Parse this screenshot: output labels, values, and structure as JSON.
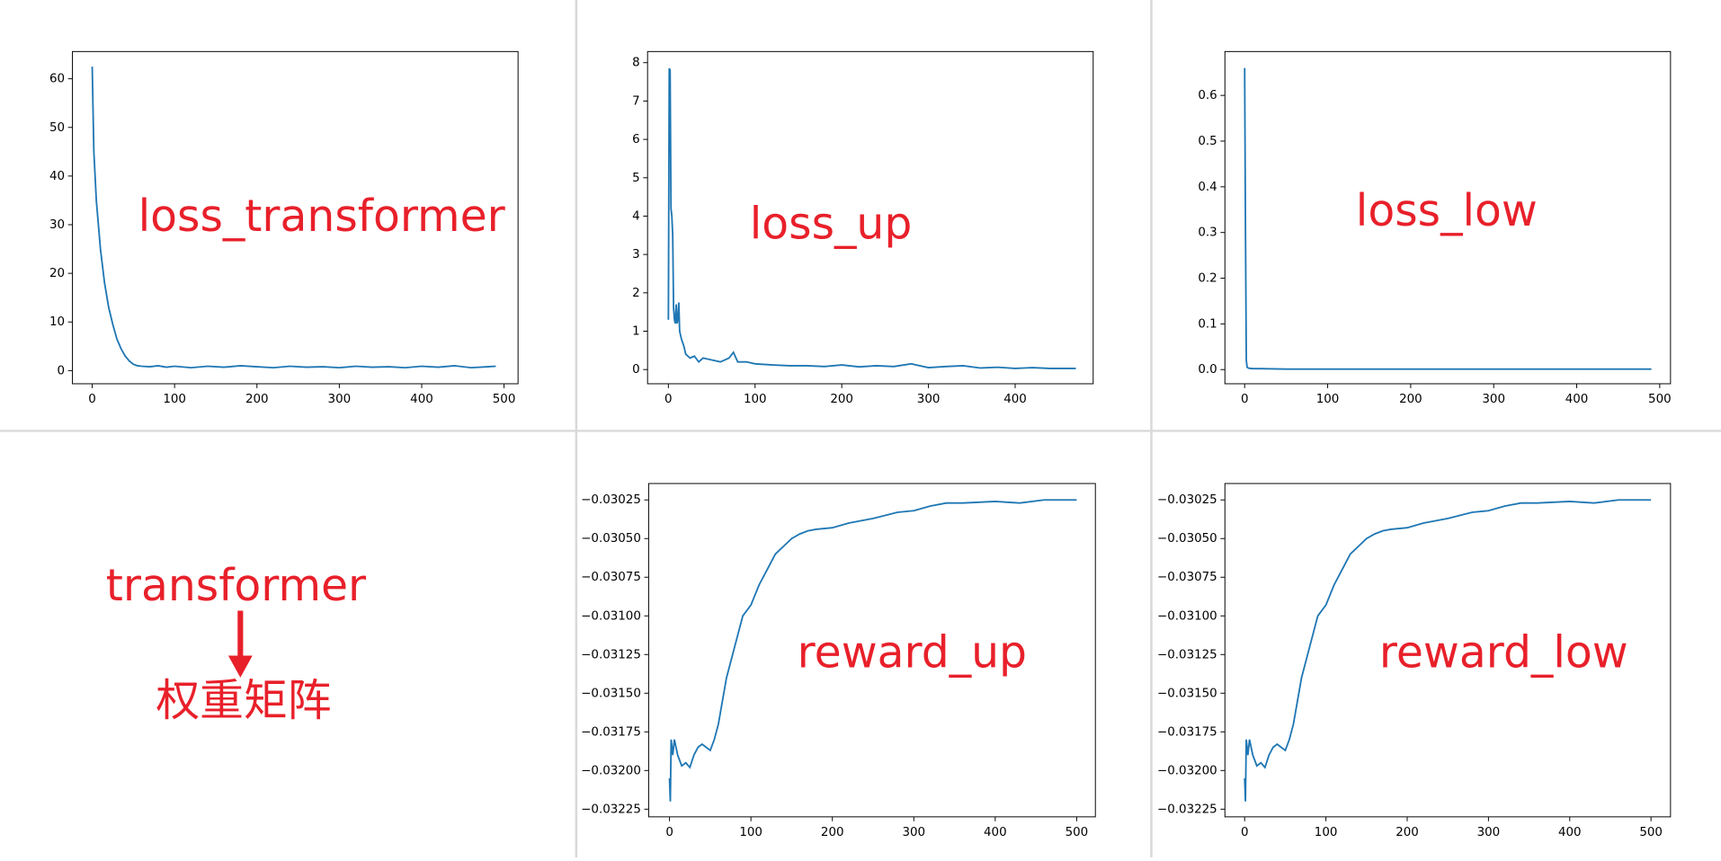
{
  "chart_data": [
    {
      "type": "line",
      "annotation": "loss_transformer",
      "x": [
        0,
        2,
        5,
        10,
        15,
        20,
        25,
        30,
        35,
        40,
        45,
        50,
        55,
        60,
        70,
        80,
        90,
        100,
        120,
        140,
        160,
        180,
        200,
        220,
        240,
        260,
        280,
        300,
        320,
        340,
        360,
        380,
        400,
        420,
        440,
        460,
        480,
        490
      ],
      "values": [
        62.5,
        45,
        35,
        25,
        18,
        13,
        9.5,
        6.5,
        4.5,
        3,
        2,
        1.3,
        1.0,
        0.9,
        0.8,
        1.0,
        0.7,
        0.9,
        0.6,
        0.9,
        0.7,
        1.0,
        0.8,
        0.6,
        0.9,
        0.7,
        0.8,
        0.6,
        0.9,
        0.7,
        0.8,
        0.6,
        0.9,
        0.7,
        1.0,
        0.6,
        0.8,
        0.9
      ],
      "color": "#1f77b4",
      "xlim": [
        -24,
        517
      ],
      "ylim": [
        -2.7,
        65.6
      ],
      "xticks": [
        0,
        100,
        200,
        300,
        400,
        500
      ],
      "yticks": [
        0,
        10,
        20,
        30,
        40,
        50,
        60
      ]
    },
    {
      "type": "line",
      "annotation": "loss_up",
      "x": [
        0,
        1,
        2,
        3,
        4,
        5,
        6,
        7,
        8,
        9,
        10,
        11,
        12,
        13,
        14,
        15,
        18,
        20,
        25,
        30,
        35,
        40,
        50,
        60,
        70,
        75,
        80,
        90,
        100,
        120,
        140,
        160,
        180,
        200,
        220,
        240,
        260,
        280,
        300,
        320,
        340,
        360,
        380,
        400,
        420,
        440,
        470
      ],
      "values": [
        1.3,
        7.85,
        7.8,
        4.2,
        4.0,
        3.5,
        1.6,
        1.3,
        1.2,
        1.7,
        1.2,
        1.3,
        1.75,
        1.0,
        0.9,
        0.8,
        0.6,
        0.4,
        0.3,
        0.35,
        0.2,
        0.3,
        0.25,
        0.2,
        0.3,
        0.45,
        0.2,
        0.2,
        0.15,
        0.12,
        0.1,
        0.1,
        0.08,
        0.12,
        0.07,
        0.1,
        0.08,
        0.15,
        0.05,
        0.08,
        0.1,
        0.04,
        0.06,
        0.03,
        0.05,
        0.03,
        0.03
      ],
      "color": "#1f77b4",
      "xlim": [
        -24,
        490
      ],
      "ylim": [
        -0.37,
        8.29
      ],
      "xticks": [
        0,
        100,
        200,
        300,
        400
      ],
      "yticks": [
        0,
        1,
        2,
        3,
        4,
        5,
        6,
        7,
        8
      ]
    },
    {
      "type": "line",
      "annotation": "loss_low",
      "x": [
        0,
        1,
        2,
        3,
        5,
        10,
        20,
        50,
        100,
        200,
        300,
        400,
        490
      ],
      "values": [
        0.66,
        0.3,
        0.02,
        0.005,
        0.003,
        0.002,
        0.002,
        0.001,
        0.001,
        0.001,
        0.001,
        0.001,
        0.001
      ],
      "color": "#1f77b4",
      "xlim": [
        -23.8,
        513
      ],
      "ylim": [
        -0.031,
        0.696
      ],
      "xticks": [
        0,
        100,
        200,
        300,
        400,
        500
      ],
      "yticks": [
        {
          "value": 0,
          "label": "0.0"
        },
        0.1,
        0.2,
        0.3,
        0.4,
        0.5,
        0.6
      ]
    },
    {
      "type": "line",
      "annotation": "reward_up",
      "x": [
        0,
        1,
        2,
        4,
        6,
        8,
        10,
        15,
        20,
        25,
        30,
        35,
        40,
        45,
        50,
        55,
        60,
        70,
        80,
        90,
        100,
        110,
        120,
        130,
        140,
        150,
        160,
        170,
        180,
        200,
        220,
        250,
        280,
        300,
        320,
        340,
        360,
        400,
        430,
        460,
        480,
        500
      ],
      "values": [
        -0.03205,
        -0.0322,
        -0.0318,
        -0.0319,
        -0.0318,
        -0.03185,
        -0.0319,
        -0.03197,
        -0.03195,
        -0.03198,
        -0.0319,
        -0.03185,
        -0.03183,
        -0.03185,
        -0.03187,
        -0.0318,
        -0.0317,
        -0.0314,
        -0.0312,
        -0.031,
        -0.03093,
        -0.0308,
        -0.0307,
        -0.0306,
        -0.03055,
        -0.0305,
        -0.03047,
        -0.03045,
        -0.03044,
        -0.03043,
        -0.0304,
        -0.03037,
        -0.03033,
        -0.03032,
        -0.03029,
        -0.03027,
        -0.03027,
        -0.03026,
        -0.03027,
        -0.03025,
        -0.03025,
        -0.03025
      ],
      "color": "#1f77b4",
      "xlim": [
        -25.6,
        523
      ],
      "ylim": [
        -0.0322996,
        -0.030144
      ],
      "xticks": [
        0,
        100,
        200,
        300,
        400,
        500
      ],
      "yticks": [
        {
          "value": -0.03025,
          "label": "−0.03025"
        },
        {
          "value": -0.0305,
          "label": "−0.03050"
        },
        {
          "value": -0.03075,
          "label": "−0.03075"
        },
        {
          "value": -0.031,
          "label": "−0.03100"
        },
        {
          "value": -0.03125,
          "label": "−0.03125"
        },
        {
          "value": -0.0315,
          "label": "−0.03150"
        },
        {
          "value": -0.03175,
          "label": "−0.03175"
        },
        {
          "value": -0.032,
          "label": "−0.03200"
        },
        {
          "value": -0.03225,
          "label": "−0.03225"
        }
      ]
    },
    {
      "type": "line",
      "annotation": "reward_low",
      "x": [
        0,
        1,
        2,
        4,
        6,
        8,
        10,
        15,
        20,
        25,
        30,
        35,
        40,
        45,
        50,
        55,
        60,
        70,
        80,
        90,
        100,
        110,
        120,
        130,
        140,
        150,
        160,
        170,
        180,
        200,
        220,
        250,
        280,
        300,
        320,
        340,
        360,
        400,
        430,
        460,
        480,
        500
      ],
      "values": [
        -0.03205,
        -0.0322,
        -0.0318,
        -0.0319,
        -0.0318,
        -0.03185,
        -0.0319,
        -0.03197,
        -0.03195,
        -0.03198,
        -0.0319,
        -0.03185,
        -0.03183,
        -0.03185,
        -0.03187,
        -0.0318,
        -0.0317,
        -0.0314,
        -0.0312,
        -0.031,
        -0.03093,
        -0.0308,
        -0.0307,
        -0.0306,
        -0.03055,
        -0.0305,
        -0.03047,
        -0.03045,
        -0.03044,
        -0.03043,
        -0.0304,
        -0.03037,
        -0.03033,
        -0.03032,
        -0.03029,
        -0.03027,
        -0.03027,
        -0.03026,
        -0.03027,
        -0.03025,
        -0.03025,
        -0.03025
      ],
      "color": "#1f77b4",
      "xlim": [
        -24.3,
        524
      ],
      "ylim": [
        -0.0322996,
        -0.030144
      ],
      "xticks": [
        0,
        100,
        200,
        300,
        400,
        500
      ],
      "yticks": [
        {
          "value": -0.03025,
          "label": "−0.03025"
        },
        {
          "value": -0.0305,
          "label": "−0.03050"
        },
        {
          "value": -0.03075,
          "label": "−0.03075"
        },
        {
          "value": -0.031,
          "label": "−0.03100"
        },
        {
          "value": -0.03125,
          "label": "−0.03125"
        },
        {
          "value": -0.0315,
          "label": "−0.03150"
        },
        {
          "value": -0.03175,
          "label": "−0.03175"
        },
        {
          "value": -0.032,
          "label": "−0.03200"
        },
        {
          "value": -0.03225,
          "label": "−0.03225"
        }
      ]
    }
  ],
  "diagram": {
    "from": "transformer",
    "to": "权重矩阵"
  }
}
